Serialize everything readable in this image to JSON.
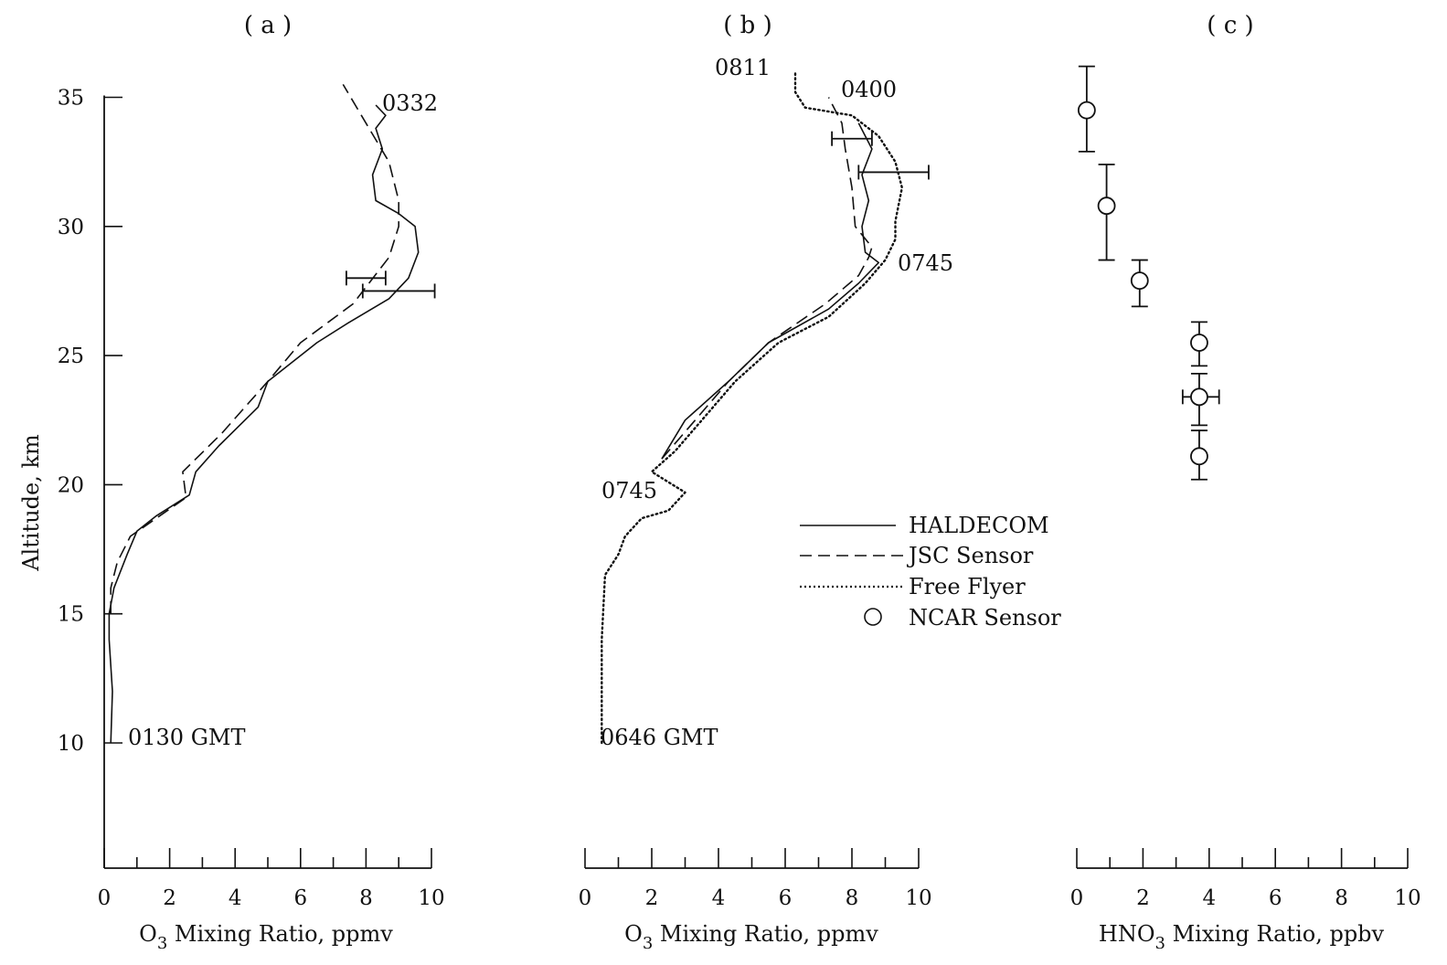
{
  "panels": [
    {
      "label": "( a )"
    },
    {
      "label": "( b )"
    },
    {
      "label": "( c )"
    }
  ],
  "y_axis_label": "Altitude, km",
  "x_axis_labels": {
    "a": {
      "pre": "O",
      "sub": "3",
      "post": " Mixing Ratio, ppmv"
    },
    "b": {
      "pre": "O",
      "sub": "3",
      "post": " Mixing Ratio, ppmv"
    },
    "c": {
      "pre": "HNO",
      "sub": "3",
      "post": " Mixing Ratio, ppbv"
    }
  },
  "legend": {
    "haldecom": "HALDECOM",
    "jsc": "JSC Sensor",
    "free_flyer": "Free Flyer",
    "ncar": "NCAR Sensor"
  },
  "annotations": {
    "a_top": "0332",
    "a_bottom": "0130 GMT",
    "b_top_ff": "0811",
    "b_top_jsc": "0400",
    "b_mid_right": "0745",
    "b_mid_left": "0745",
    "b_bottom": "0646 GMT"
  },
  "colors": {
    "ink": "#111111",
    "background": "#ffffff"
  },
  "chart_data": [
    {
      "type": "line",
      "panel": "a",
      "title": "( a )",
      "xlabel": "O3 Mixing Ratio, ppmv",
      "ylabel": "Altitude, km",
      "xlim": [
        0,
        10
      ],
      "ylim": [
        5.5,
        35
      ],
      "xticks": [
        0,
        2,
        4,
        6,
        8,
        10
      ],
      "yticks": [
        10,
        15,
        20,
        25,
        30,
        35
      ],
      "series": [
        {
          "name": "HALDECOM",
          "style": "solid",
          "points": [
            [
              0.2,
              10
            ],
            [
              0.25,
              12
            ],
            [
              0.15,
              14
            ],
            [
              0.15,
              15
            ],
            [
              0.3,
              16
            ],
            [
              0.7,
              17.3
            ],
            [
              1.0,
              18.2
            ],
            [
              1.6,
              18.8
            ],
            [
              2.6,
              19.6
            ],
            [
              2.8,
              20.5
            ],
            [
              3.5,
              21.5
            ],
            [
              4.7,
              23.0
            ],
            [
              5.0,
              24.0
            ],
            [
              6.5,
              25.5
            ],
            [
              7.5,
              26.3
            ],
            [
              8.7,
              27.2
            ],
            [
              9.3,
              28
            ],
            [
              9.6,
              29
            ],
            [
              9.5,
              30
            ],
            [
              9.0,
              30.5
            ],
            [
              8.3,
              31.0
            ],
            [
              8.2,
              32.0
            ],
            [
              8.5,
              33.0
            ],
            [
              8.3,
              33.8
            ],
            [
              8.6,
              34.3
            ],
            [
              8.3,
              34.7
            ]
          ]
        },
        {
          "name": "JSC Sensor",
          "style": "dashed",
          "points": [
            [
              0.2,
              15
            ],
            [
              0.2,
              16
            ],
            [
              0.4,
              17.0
            ],
            [
              0.8,
              18.0
            ],
            [
              2.5,
              19.5
            ],
            [
              2.4,
              20.5
            ],
            [
              3.6,
              22.0
            ],
            [
              4.3,
              23.0
            ],
            [
              5.0,
              24.0
            ],
            [
              6.0,
              25.5
            ],
            [
              7.6,
              27.0
            ],
            [
              8.7,
              28.8
            ],
            [
              9.0,
              30.0
            ],
            [
              9.0,
              31.0
            ],
            [
              8.7,
              32.5
            ],
            [
              8.0,
              34.0
            ],
            [
              7.3,
              35.5
            ]
          ]
        }
      ],
      "error_bars": [
        {
          "y": 28.0,
          "x_low": 7.4,
          "x_high": 8.6
        },
        {
          "y": 27.5,
          "x_low": 7.9,
          "x_high": 10.1
        }
      ]
    },
    {
      "type": "line",
      "panel": "b",
      "title": "( b )",
      "xlabel": "O3 Mixing Ratio, ppmv",
      "xlim": [
        0,
        10
      ],
      "ylim": [
        5.5,
        35
      ],
      "xticks": [
        0,
        2,
        4,
        6,
        8,
        10
      ],
      "series": [
        {
          "name": "HALDECOM",
          "style": "solid",
          "points": [
            [
              2.3,
              21
            ],
            [
              3.0,
              22.5
            ],
            [
              4.3,
              24.0
            ],
            [
              5.5,
              25.5
            ],
            [
              7.3,
              26.8
            ],
            [
              8.2,
              27.8
            ],
            [
              8.8,
              28.6
            ],
            [
              8.4,
              29.0
            ],
            [
              8.3,
              30.0
            ],
            [
              8.5,
              31.0
            ],
            [
              8.3,
              32.0
            ],
            [
              8.6,
              33.0
            ],
            [
              8.2,
              34.0
            ]
          ]
        },
        {
          "name": "JSC Sensor",
          "style": "dashed",
          "points": [
            [
              2.3,
              21
            ],
            [
              3.3,
              22.5
            ],
            [
              4.3,
              24
            ],
            [
              5.5,
              25.5
            ],
            [
              7.2,
              27.0
            ],
            [
              8.2,
              28.1
            ],
            [
              8.5,
              28.8
            ],
            [
              8.6,
              29.2
            ],
            [
              8.1,
              30.0
            ],
            [
              8.0,
              31.5
            ],
            [
              7.8,
              33.0
            ],
            [
              7.7,
              34.0
            ],
            [
              7.3,
              35.0
            ]
          ]
        },
        {
          "name": "Free Flyer",
          "style": "dotted",
          "points": [
            [
              0.5,
              10
            ],
            [
              0.5,
              12
            ],
            [
              0.5,
              14
            ],
            [
              0.6,
              16.5
            ],
            [
              1.0,
              17.3
            ],
            [
              1.2,
              18.0
            ],
            [
              1.7,
              18.7
            ],
            [
              2.5,
              19.0
            ],
            [
              3.0,
              19.7
            ],
            [
              2.0,
              20.5
            ],
            [
              2.7,
              21.3
            ],
            [
              3.5,
              22.5
            ],
            [
              4.5,
              24
            ],
            [
              5.8,
              25.5
            ],
            [
              7.3,
              26.5
            ],
            [
              8.4,
              27.8
            ],
            [
              9.0,
              28.7
            ],
            [
              9.3,
              29.5
            ],
            [
              9.3,
              30.2
            ],
            [
              9.5,
              31.5
            ],
            [
              9.3,
              32.5
            ],
            [
              8.8,
              33.5
            ],
            [
              8.0,
              34.3
            ],
            [
              6.6,
              34.6
            ],
            [
              6.3,
              35.2
            ],
            [
              6.3,
              36.0
            ]
          ]
        }
      ],
      "error_bars": [
        {
          "y": 33.4,
          "x_low": 7.4,
          "x_high": 8.6
        },
        {
          "y": 32.1,
          "x_low": 8.2,
          "x_high": 10.3
        }
      ]
    },
    {
      "type": "scatter",
      "panel": "c",
      "title": "( c )",
      "xlabel": "HNO3 Mixing Ratio, ppbv",
      "xlim": [
        0,
        10
      ],
      "ylim": [
        5.5,
        35
      ],
      "xticks": [
        0,
        2,
        4,
        6,
        8,
        10
      ],
      "series": [
        {
          "name": "NCAR Sensor",
          "points": [
            {
              "x": 0.3,
              "y": 34.5,
              "y_low": 32.9,
              "y_high": 36.2
            },
            {
              "x": 0.9,
              "y": 30.8,
              "y_low": 28.7,
              "y_high": 32.4
            },
            {
              "x": 1.9,
              "y": 27.9,
              "y_low": 26.9,
              "y_high": 28.7
            },
            {
              "x": 3.7,
              "y": 25.5,
              "y_low": 24.6,
              "y_high": 26.3
            },
            {
              "x": 3.7,
              "y": 23.4,
              "y_low": 22.3,
              "y_high": 24.3,
              "x_low": 3.2,
              "x_high": 4.3
            },
            {
              "x": 3.7,
              "y": 21.1,
              "y_low": 20.2,
              "y_high": 22.1
            }
          ]
        }
      ]
    }
  ]
}
